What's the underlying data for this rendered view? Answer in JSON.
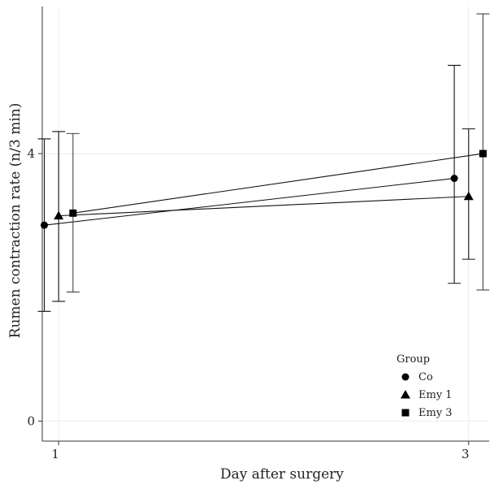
{
  "chart_data": {
    "type": "line",
    "xlabel": "Day after surgery",
    "ylabel": "Rumen contraction rate (n/3 min)",
    "x_ticks": [
      "1",
      "3"
    ],
    "y_ticks": [
      "0",
      "4"
    ],
    "xlim": [
      0.92,
      3.1
    ],
    "ylim": [
      -0.3,
      6.2
    ],
    "grid": true,
    "legend": {
      "title": "Group",
      "placement": "bottom-right",
      "entries": [
        {
          "name": "Co",
          "marker": "circle"
        },
        {
          "name": "Emy 1",
          "marker": "triangle"
        },
        {
          "name": "Emy 3",
          "marker": "square"
        }
      ]
    },
    "series": [
      {
        "name": "Co",
        "marker": "circle",
        "dodge": -0.07,
        "points": [
          {
            "x": 1,
            "y": 2.93,
            "ymin": 1.64,
            "ymax": 4.22
          },
          {
            "x": 3,
            "y": 3.63,
            "ymin": 2.06,
            "ymax": 5.32
          }
        ]
      },
      {
        "name": "Emy 1",
        "marker": "triangle",
        "dodge": 0.0,
        "points": [
          {
            "x": 1,
            "y": 3.07,
            "ymin": 1.79,
            "ymax": 4.33
          },
          {
            "x": 3,
            "y": 3.36,
            "ymin": 2.42,
            "ymax": 4.37
          }
        ]
      },
      {
        "name": "Emy 3",
        "marker": "square",
        "dodge": 0.07,
        "points": [
          {
            "x": 1,
            "y": 3.11,
            "ymin": 1.93,
            "ymax": 4.3
          },
          {
            "x": 3,
            "y": 4.0,
            "ymin": 1.96,
            "ymax": 6.09
          }
        ]
      }
    ],
    "colors": {
      "line": "#111111",
      "errorbar_dark": "#111111",
      "errorbar_mid": "#444444",
      "errorbar_light": "#777777",
      "grid": "#ebebeb",
      "axis": "#333333"
    }
  }
}
